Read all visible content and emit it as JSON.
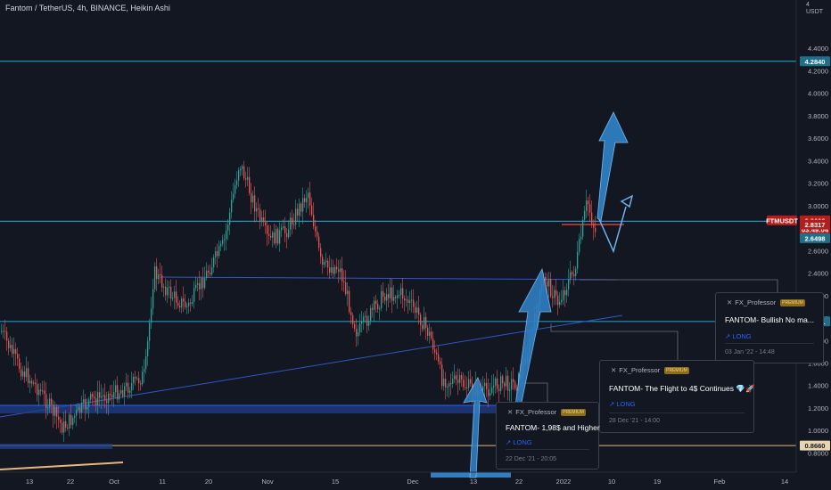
{
  "header": {
    "title": "Fantom / TetherUS, 4h, BINANCE, Heikin Ashi",
    "currency": "USDT"
  },
  "colors": {
    "background": "#131722",
    "up": "#26a69a",
    "down": "#ef5350",
    "hline": "#2a8fb8",
    "trendline": "#2f56c7",
    "arrow": "#2f7fc1",
    "orange_line": "#e8b67a",
    "red_level": "#e53935"
  },
  "price_axis": {
    "ticks": [
      "4.4000",
      "4.2000",
      "4.0000",
      "3.8000",
      "3.6000",
      "3.4000",
      "3.2000",
      "3.0000",
      "2.8000",
      "2.6000",
      "2.4000",
      "2.2000",
      "2.0000",
      "1.8000",
      "1.6000",
      "1.4000",
      "1.2000",
      "1.0000",
      "0.8000"
    ],
    "top_label": "4",
    "labels": {
      "level_high": "4.2840",
      "symbol": "FTMUSDT",
      "last_price": "2.8606",
      "countdown": "03:49:04",
      "prev_close": "2.6498",
      "red_level": "2.8317",
      "level_mid": "1.9701",
      "level_low": "0.8660"
    }
  },
  "time_axis": {
    "ticks": [
      "13",
      "22",
      "Oct",
      "11",
      "20",
      "Nov",
      "15",
      "Dec",
      "13",
      "22",
      "2022",
      "10",
      "19",
      "Feb",
      "14"
    ]
  },
  "ideas": [
    {
      "author": "FX_Professor",
      "badge": "PREMIUM",
      "title": "FANTOM- Bullish No ma...",
      "direction": "↗ LONG",
      "date": "03 Jan '22 - 14:48"
    },
    {
      "author": "FX_Professor",
      "badge": "PREMIUM",
      "title": "FANTOM- The Flight to 4$ Continues 💎🚀",
      "direction": "↗ LONG",
      "date": "28 Dec '21 - 14:00"
    },
    {
      "author": "FX_Professor",
      "badge": "PREMIUM",
      "title": "FANTOM- 1,98$ and Higher",
      "direction": "↗ LONG",
      "date": "22 Dec '21 - 20:05"
    }
  ],
  "chart_data": {
    "type": "candlestick",
    "title": "Fantom / TetherUS, 4h, BINANCE, Heikin Ashi",
    "xlabel": "",
    "ylabel": "",
    "ylim": [
      0.75,
      4.45
    ],
    "grid": false,
    "x": [
      "Sep 13",
      "Sep 22",
      "Oct 1",
      "Oct 11",
      "Oct 20",
      "Nov 1",
      "Nov 15",
      "Dec 1",
      "Dec 13",
      "Dec 22",
      "Jan 1 2022",
      "Jan 10",
      "Jan 19",
      "Feb 1",
      "Feb 14"
    ],
    "close_path": [
      1.62,
      1.4,
      1.26,
      1.36,
      1.45,
      2.3,
      2.15,
      3.4,
      2.8,
      2.7,
      3.1,
      2.4,
      2.0,
      2.6,
      2.25,
      1.45,
      1.32,
      1.42,
      2.3,
      2.2,
      2.95,
      2.86
    ],
    "last_price": 2.8606,
    "horizontal_levels": [
      4.284,
      2.8606,
      1.9701,
      0.866
    ],
    "red_level": 2.8317
  }
}
